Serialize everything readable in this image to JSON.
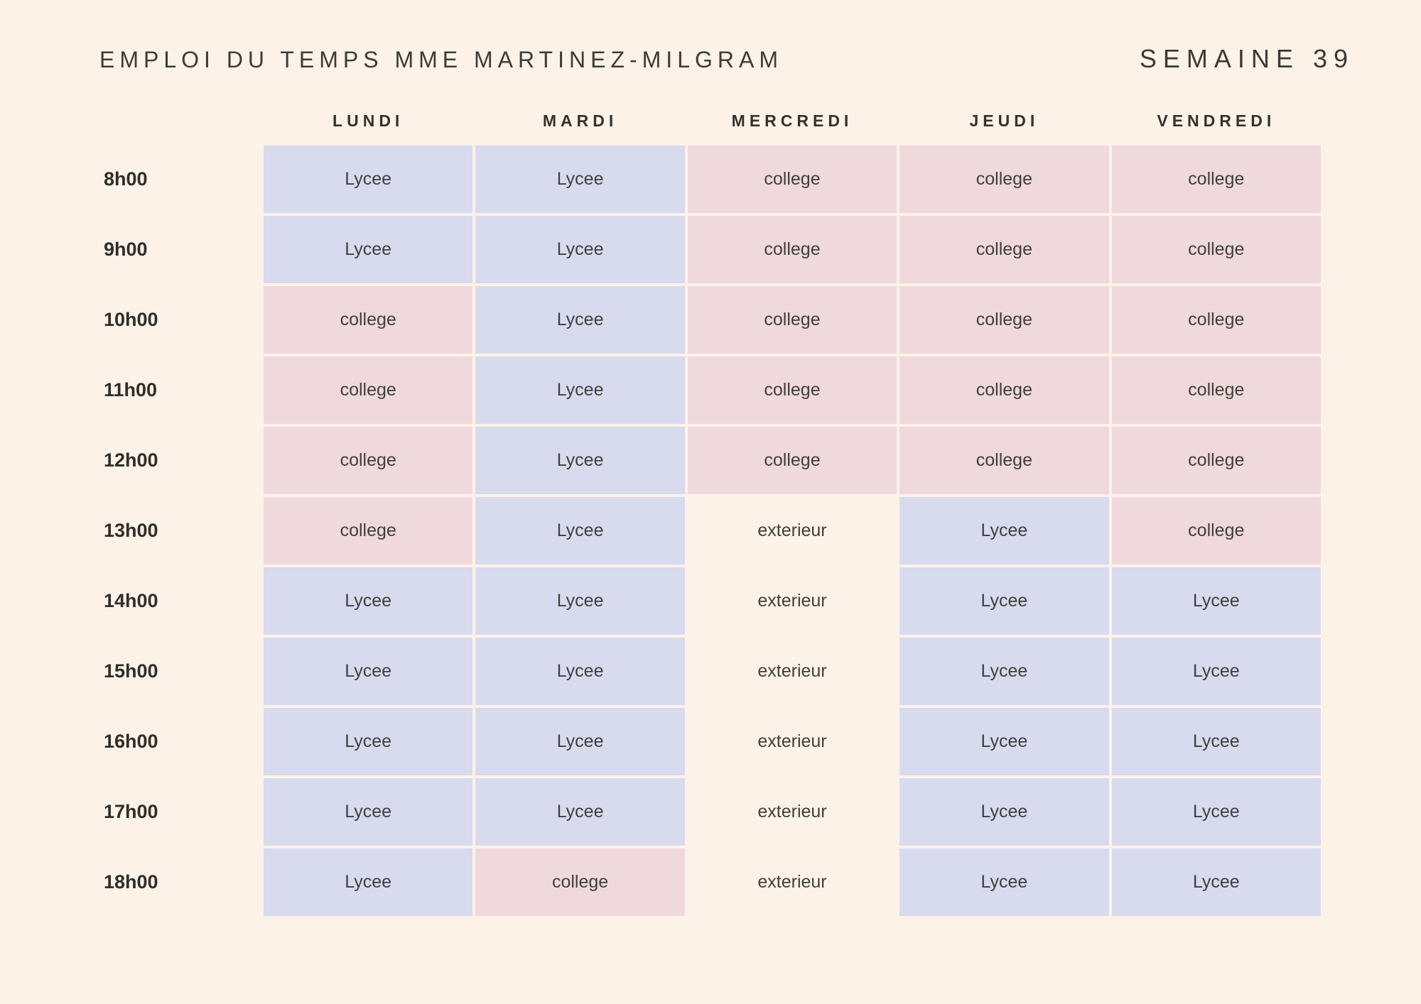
{
  "header": {
    "title": "EMPLOI DU TEMPS MME MARTINEZ-MILGRAM",
    "week_label": "SEMAINE 39"
  },
  "colors": {
    "page_background": "#fdf2e8",
    "lycee_cell": "#d8daee",
    "college_cell": "#f0d9dc",
    "exterieur_cell": "transparent",
    "text_dark": "#3a3936"
  },
  "cell_types": [
    {
      "value": "Lycee",
      "color": "#d8daee"
    },
    {
      "value": "college",
      "color": "#f0d9dc"
    },
    {
      "value": "exterieur",
      "color": "transparent"
    }
  ],
  "schedule": {
    "days": [
      "LUNDI",
      "MARDI",
      "MERCREDI",
      "JEUDI",
      "VENDREDI"
    ],
    "rows": [
      {
        "time": "8h00",
        "cells": [
          "Lycee",
          "Lycee",
          "college",
          "college",
          "college"
        ]
      },
      {
        "time": "9h00",
        "cells": [
          "Lycee",
          "Lycee",
          "college",
          "college",
          "college"
        ]
      },
      {
        "time": "10h00",
        "cells": [
          "college",
          "Lycee",
          "college",
          "college",
          "college"
        ]
      },
      {
        "time": "11h00",
        "cells": [
          "college",
          "Lycee",
          "college",
          "college",
          "college"
        ]
      },
      {
        "time": "12h00",
        "cells": [
          "college",
          "Lycee",
          "college",
          "college",
          "college"
        ]
      },
      {
        "time": "13h00",
        "cells": [
          "college",
          "Lycee",
          "exterieur",
          "Lycee",
          "college"
        ]
      },
      {
        "time": "14h00",
        "cells": [
          "Lycee",
          "Lycee",
          "exterieur",
          "Lycee",
          "Lycee"
        ]
      },
      {
        "time": "15h00",
        "cells": [
          "Lycee",
          "Lycee",
          "exterieur",
          "Lycee",
          "Lycee"
        ]
      },
      {
        "time": "16h00",
        "cells": [
          "Lycee",
          "Lycee",
          "exterieur",
          "Lycee",
          "Lycee"
        ]
      },
      {
        "time": "17h00",
        "cells": [
          "Lycee",
          "Lycee",
          "exterieur",
          "Lycee",
          "Lycee"
        ]
      },
      {
        "time": "18h00",
        "cells": [
          "Lycee",
          "college",
          "exterieur",
          "Lycee",
          "Lycee"
        ]
      }
    ]
  }
}
